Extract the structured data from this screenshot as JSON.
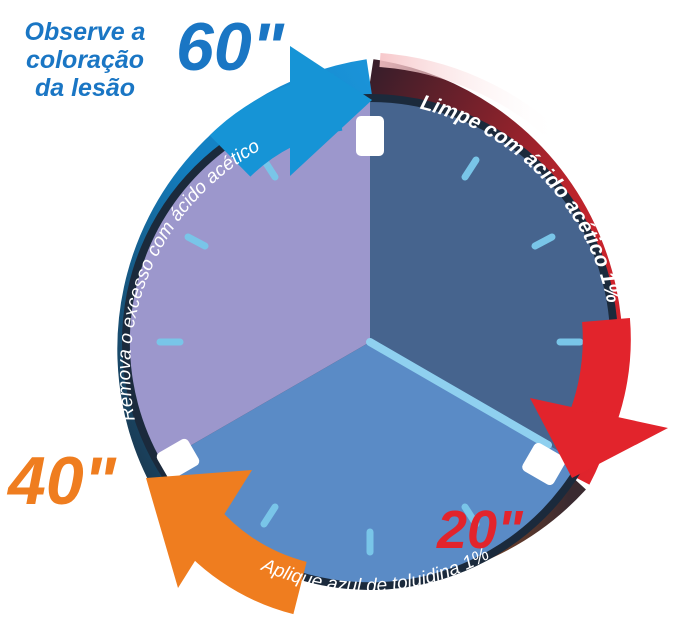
{
  "note": {
    "line1": "Observe a",
    "line2": "coloração",
    "line3": "da lesão"
  },
  "times": {
    "t60": "60\"",
    "t20": "20\"",
    "t40": "40\""
  },
  "steps": {
    "red": "Limpe com ácido acético 1%",
    "orange": "Aplique azul de toluidina 1%",
    "blue": "Remova o excesso com ácido acético"
  },
  "colors": {
    "blue_accent": "#1a76c4",
    "red_accent": "#e2242c",
    "orange_accent": "#ef7d1f",
    "sector_dark": "#46648e",
    "sector_mid": "#5a8bc6",
    "sector_light": "#9c97cc",
    "tick": "#79c5e8",
    "hand": "#8fd0ef"
  }
}
